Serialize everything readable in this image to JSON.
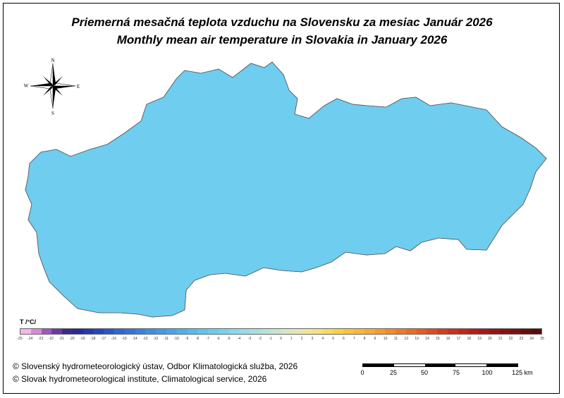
{
  "title_sk": "Priemerná mesačná teplota vzduchu na Slovensku za mesiac Január 2026",
  "title_en": "Monthly mean air temperature in Slovakia in January 2026",
  "legend": {
    "unit": "T /°C/",
    "ticks": [
      "-25",
      "-24",
      "-23",
      "-22",
      "-21",
      "-20",
      "-19",
      "-18",
      "-17",
      "-16",
      "-15",
      "-14",
      "-13",
      "-12",
      "-11",
      "-10",
      "-9",
      "-8",
      "-7",
      "-6",
      "-5",
      "-4",
      "-3",
      "-2",
      "-1",
      "0",
      "1",
      "2",
      "3",
      "4",
      "5",
      "6",
      "7",
      "8",
      "9",
      "10",
      "11",
      "12",
      "13",
      "14",
      "15",
      "16",
      "17",
      "18",
      "19",
      "20",
      "21",
      "22",
      "23",
      "24",
      "25"
    ],
    "colors": [
      "#f2b8e6",
      "#d98ad6",
      "#9f56c2",
      "#6a3aa8",
      "#3a2a8c",
      "#242aa0",
      "#2438b0",
      "#2446c2",
      "#2a56cc",
      "#2e66d6",
      "#3274dc",
      "#3682e2",
      "#3a8ee6",
      "#3e9aea",
      "#42a6ee",
      "#4ab2f0",
      "#52bcf2",
      "#5cc6f2",
      "#68cef2",
      "#76d4f0",
      "#86daee",
      "#96dcea",
      "#a6e0e4",
      "#b6e2dc",
      "#c6e4d2",
      "#d8e6c6",
      "#e6e6b4",
      "#f2e49c",
      "#f8e07e",
      "#fcd85c",
      "#fed040",
      "#fec436",
      "#feb830",
      "#fcaa2c",
      "#fa9a28",
      "#f68a24",
      "#f27a22",
      "#ee6a20",
      "#ea5a1e",
      "#e44a1c",
      "#dc3a1a",
      "#d22e18",
      "#c62416",
      "#b81c16",
      "#aa1616",
      "#9a1212",
      "#8a1010",
      "#7a0e0e",
      "#6a0c0c",
      "#5a0a0a"
    ]
  },
  "compass": {
    "n": "N",
    "s": "S",
    "e": "E",
    "w": "W"
  },
  "credits": {
    "line1": "© Slovenský hydrometeorologický ústav, Odbor Klimatologická služba, 2026",
    "line2": "© Slovak hydrometeorological institute, Climatological service, 2026"
  },
  "scalebar": {
    "labels": [
      "0",
      "25",
      "50",
      "75",
      "100",
      "125 km"
    ]
  },
  "map_colors": {
    "lowland": "#8fd3e6",
    "low_hills": "#6fcdef",
    "hills": "#55bdee",
    "mid": "#46aeea",
    "high": "#3a98e2",
    "peaks": "#2e82d8"
  }
}
